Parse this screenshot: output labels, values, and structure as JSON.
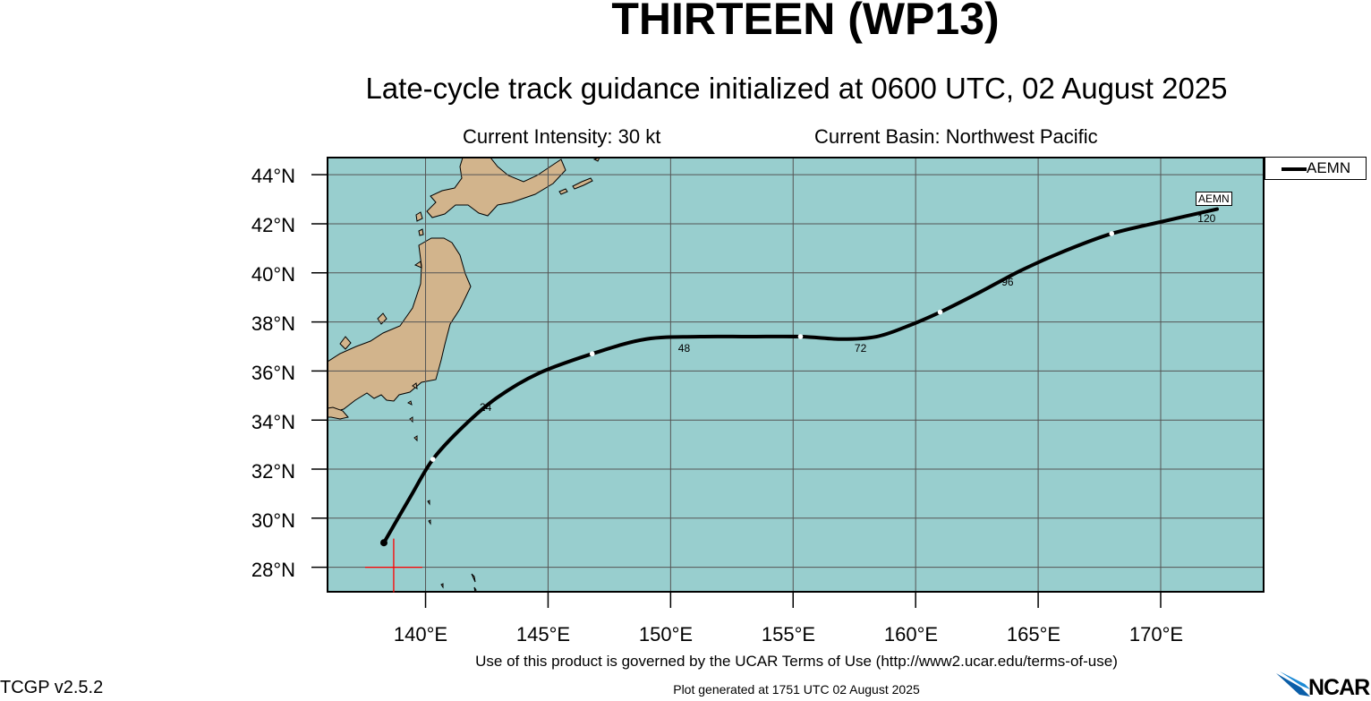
{
  "header": {
    "title": "THIRTEEN (WP13)",
    "subtitle": "Late-cycle track guidance initialized at 0600 UTC, 02 August 2025",
    "intensity": "Current Intensity: 30 kt",
    "basin": "Current Basin: Northwest Pacific"
  },
  "map": {
    "ocean_color": "#98cece",
    "land_color": "#d2b48c",
    "grid_color": "#555555",
    "track_color": "#000000",
    "lon_range": [
      136,
      174.2
    ],
    "lat_range": [
      27,
      44.7
    ],
    "y_labels": [
      "44°N",
      "42°N",
      "40°N",
      "38°N",
      "36°N",
      "34°N",
      "32°N",
      "30°N",
      "28°N"
    ],
    "x_labels": [
      "140°E",
      "145°E",
      "150°E",
      "155°E",
      "160°E",
      "165°E",
      "170°E"
    ],
    "current_position": {
      "lon": 138.7,
      "lat": 28
    }
  },
  "legend": {
    "entries": [
      {
        "name": "AEMN",
        "color": "#000000"
      }
    ]
  },
  "tracks": [
    {
      "name": "AEMN",
      "end_label": "AEMN",
      "points": [
        {
          "lon": 138.3,
          "lat": 29.0
        },
        {
          "lon": 139.4,
          "lat": 30.9
        },
        {
          "lon": 140.3,
          "lat": 32.4
        },
        {
          "lon": 141.5,
          "lat": 33.7
        },
        {
          "lon": 142.9,
          "lat": 34.9
        },
        {
          "lon": 144.6,
          "lat": 35.9
        },
        {
          "lon": 146.8,
          "lat": 36.7
        },
        {
          "lon": 149.0,
          "lat": 37.3
        },
        {
          "lon": 151.2,
          "lat": 37.4
        },
        {
          "lon": 153.2,
          "lat": 37.4
        },
        {
          "lon": 155.3,
          "lat": 37.4
        },
        {
          "lon": 157.0,
          "lat": 37.3
        },
        {
          "lon": 158.4,
          "lat": 37.4
        },
        {
          "lon": 159.6,
          "lat": 37.8
        },
        {
          "lon": 161.0,
          "lat": 38.4
        },
        {
          "lon": 162.6,
          "lat": 39.2
        },
        {
          "lon": 164.3,
          "lat": 40.1
        },
        {
          "lon": 166.1,
          "lat": 40.9
        },
        {
          "lon": 168.0,
          "lat": 41.6
        },
        {
          "lon": 170.1,
          "lat": 42.1
        },
        {
          "lon": 172.3,
          "lat": 42.6
        }
      ],
      "markers": [
        {
          "lon": 140.3,
          "lat": 32.4
        },
        {
          "lon": 146.8,
          "lat": 36.7
        },
        {
          "lon": 155.3,
          "lat": 37.4
        },
        {
          "lon": 161.0,
          "lat": 38.4
        },
        {
          "lon": 168.0,
          "lat": 41.6
        }
      ],
      "hour_labels": [
        {
          "text": "24",
          "lon": 142.5,
          "lat": 34.7
        },
        {
          "text": "48",
          "lon": 150.6,
          "lat": 37.1
        },
        {
          "text": "72",
          "lon": 157.8,
          "lat": 37.1
        },
        {
          "text": "96",
          "lon": 163.8,
          "lat": 39.8
        },
        {
          "text": "120",
          "lon": 171.8,
          "lat": 42.4
        }
      ]
    }
  ],
  "footer": {
    "terms": "Use of this product is governed by the UCAR Terms of Use (http://www2.ucar.edu/terms-of-use)",
    "version": "TCGP v2.5.2",
    "generated": "Plot generated at 1751 UTC   02 August 2025",
    "logo": "NCAR"
  }
}
